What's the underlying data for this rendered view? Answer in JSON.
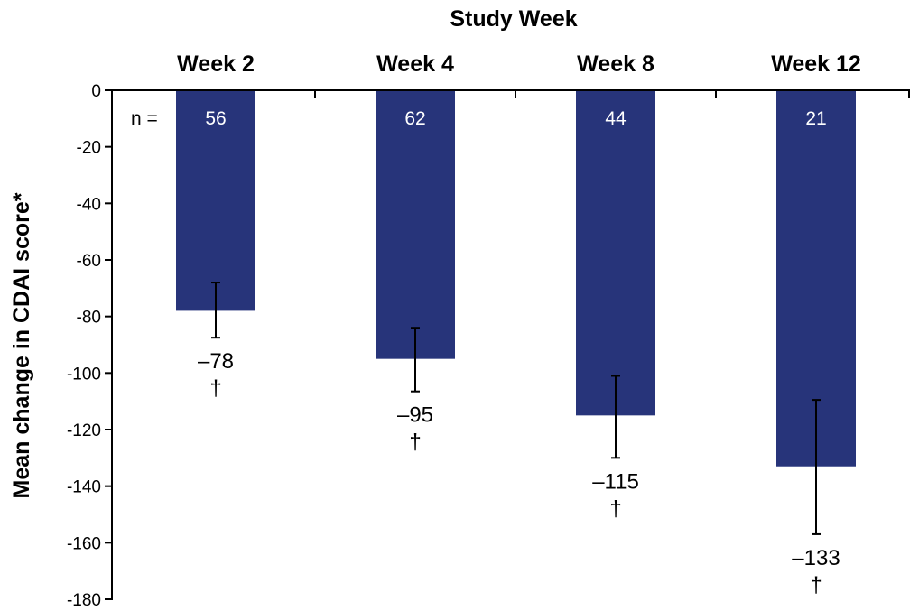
{
  "chart_data": {
    "type": "bar",
    "title": "Study Week",
    "categories": [
      "Week 2",
      "Week 4",
      "Week 8",
      "Week 12"
    ],
    "values": [
      -78,
      -95,
      -115,
      -133
    ],
    "value_labels": [
      "–78",
      "–95",
      "–115",
      "–133"
    ],
    "error_low": [
      -87.5,
      -106.5,
      -130,
      -157
    ],
    "error_high": [
      -68,
      -84,
      -101,
      -109.5
    ],
    "significance": [
      "†",
      "†",
      "†",
      "†"
    ],
    "n_label": "n =",
    "n_values": [
      "56",
      "62",
      "44",
      "21"
    ],
    "ylabel": "Mean change in CDAI score*",
    "ylim": [
      -180,
      0
    ],
    "yticks": [
      0,
      -20,
      -40,
      -60,
      -80,
      -100,
      -120,
      -140,
      -160,
      -180
    ],
    "grid": false,
    "bar_color": "#27347a",
    "n_text_color": "#ffffff"
  }
}
